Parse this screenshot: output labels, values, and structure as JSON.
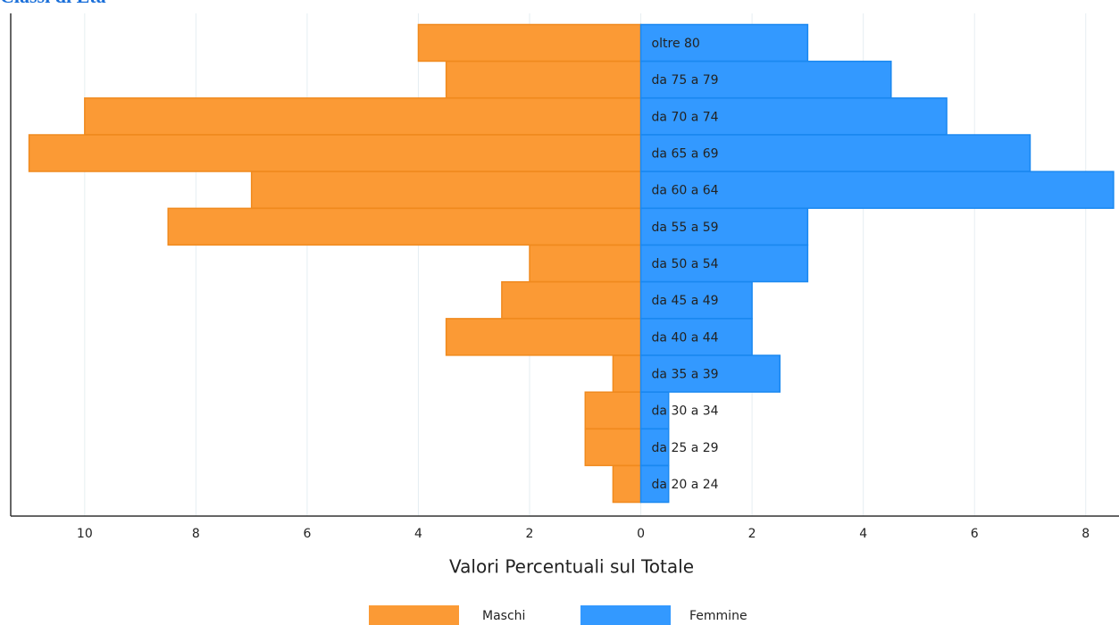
{
  "chart_data": {
    "type": "pyramid",
    "title": "Classi di Età",
    "x_label": "Valori Percentuali sul Totale",
    "categories": [
      "oltre 80",
      "da 75 a 79",
      "da 70 a 74",
      "da 65 a 69",
      "da 60 a 64",
      "da 55 a 59",
      "da 50 a 54",
      "da 45 a 49",
      "da 40 a 44",
      "da 35 a 39",
      "da 30 a 34",
      "da 25 a 29",
      "da 20 a 24"
    ],
    "series": [
      {
        "name": "Maschi",
        "color": "#fb9a35",
        "values": [
          -4,
          -3.5,
          -10,
          -11,
          -7,
          -8.5,
          -2,
          -2.5,
          -3.5,
          -0.5,
          -1,
          -1,
          -0.5
        ]
      },
      {
        "name": "Femmine",
        "color": "#3399ff",
        "values": [
          3,
          4.5,
          5.5,
          7,
          8.5,
          3,
          3,
          2,
          2,
          2.5,
          0.5,
          0.5,
          0.5
        ]
      }
    ],
    "xlim": [
      -11.33,
      8.55
    ],
    "xticks": [
      {
        "value": -10,
        "label": "10"
      },
      {
        "value": -8,
        "label": "8"
      },
      {
        "value": -6,
        "label": "6"
      },
      {
        "value": -4,
        "label": "4"
      },
      {
        "value": -2,
        "label": "2"
      },
      0,
      2,
      4,
      6,
      8
    ],
    "grid": true,
    "legend": "bottom"
  }
}
